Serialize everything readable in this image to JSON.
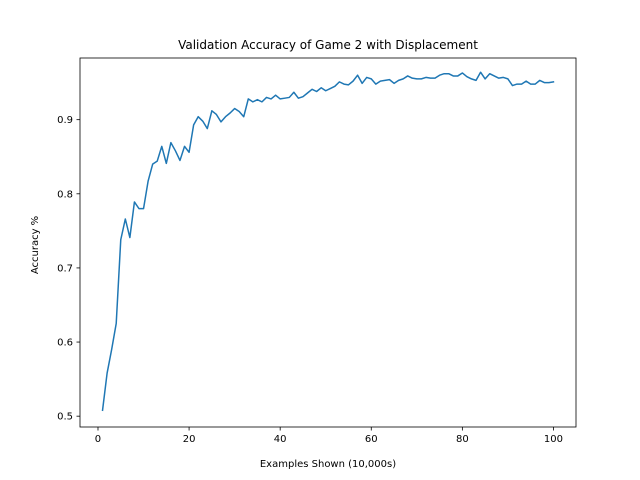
{
  "chart_data": {
    "type": "line",
    "title": "Validation Accuracy of Game 2 with Displacement",
    "xlabel": "Examples Shown (10,000s)",
    "ylabel": "Accuracy %",
    "xlim": [
      -3.95,
      104.95
    ],
    "ylim": [
      0.4854,
      0.9832
    ],
    "xticks": [
      0,
      20,
      40,
      60,
      80,
      100
    ],
    "yticks": [
      0.5,
      0.6,
      0.7,
      0.8,
      0.9
    ],
    "xtick_labels": [
      "0",
      "20",
      "40",
      "60",
      "80",
      "100"
    ],
    "ytick_labels": [
      "0.5",
      "0.6",
      "0.7",
      "0.8",
      "0.9"
    ],
    "grid": false,
    "series": [
      {
        "color": "#1f77b4",
        "x": [
          1,
          2,
          3,
          4,
          5,
          6,
          7,
          8,
          9,
          10,
          11,
          12,
          13,
          14,
          15,
          16,
          17,
          18,
          19,
          20,
          21,
          22,
          23,
          24,
          25,
          26,
          27,
          28,
          29,
          30,
          31,
          32,
          33,
          34,
          35,
          36,
          37,
          38,
          39,
          40,
          41,
          42,
          43,
          44,
          45,
          46,
          47,
          48,
          49,
          50,
          51,
          52,
          53,
          54,
          55,
          56,
          57,
          58,
          59,
          60,
          61,
          62,
          63,
          64,
          65,
          66,
          67,
          68,
          69,
          70,
          71,
          72,
          73,
          74,
          75,
          76,
          77,
          78,
          79,
          80,
          81,
          82,
          83,
          84,
          85,
          86,
          87,
          88,
          89,
          90,
          91,
          92,
          93,
          94,
          95,
          96,
          97,
          98,
          99,
          100
        ],
        "values": [
          0.508,
          0.558,
          0.59,
          0.625,
          0.738,
          0.766,
          0.741,
          0.789,
          0.78,
          0.78,
          0.817,
          0.84,
          0.844,
          0.864,
          0.841,
          0.869,
          0.858,
          0.845,
          0.864,
          0.856,
          0.893,
          0.904,
          0.898,
          0.888,
          0.912,
          0.907,
          0.897,
          0.904,
          0.909,
          0.915,
          0.911,
          0.904,
          0.928,
          0.924,
          0.927,
          0.924,
          0.93,
          0.928,
          0.933,
          0.928,
          0.929,
          0.93,
          0.937,
          0.929,
          0.931,
          0.936,
          0.941,
          0.938,
          0.943,
          0.939,
          0.942,
          0.945,
          0.951,
          0.948,
          0.947,
          0.952,
          0.96,
          0.949,
          0.957,
          0.955,
          0.948,
          0.952,
          0.953,
          0.954,
          0.949,
          0.953,
          0.955,
          0.959,
          0.956,
          0.955,
          0.955,
          0.957,
          0.956,
          0.956,
          0.96,
          0.962,
          0.962,
          0.959,
          0.959,
          0.963,
          0.958,
          0.955,
          0.953,
          0.964,
          0.955,
          0.962,
          0.959,
          0.956,
          0.957,
          0.955,
          0.946,
          0.948,
          0.948,
          0.952,
          0.948,
          0.948,
          0.953,
          0.95,
          0.95,
          0.951
        ]
      }
    ]
  }
}
